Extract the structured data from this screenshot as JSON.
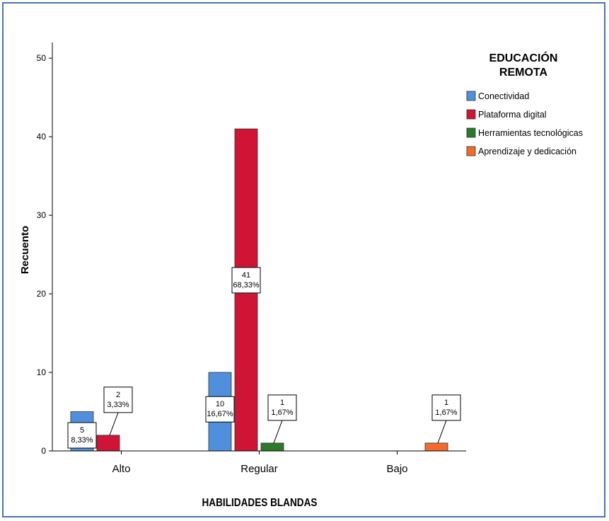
{
  "chart_data": {
    "type": "bar",
    "ylabel": "Recuento",
    "xlabel": "HABILIDADES BLANDAS",
    "ylim": [
      0,
      52
    ],
    "yticks": [
      0,
      10,
      20,
      30,
      40,
      50
    ],
    "categories": [
      "Alto",
      "Regular",
      "Bajo"
    ],
    "legend": {
      "title": [
        "EDUCACIÓN",
        "REMOTA"
      ],
      "position": "top-right"
    },
    "series": [
      {
        "name": "Conectividad",
        "color": "#4f8fdc",
        "values": [
          5,
          10,
          null
        ],
        "labels": [
          [
            "5",
            "8,33%"
          ],
          [
            "10",
            "16,67%"
          ],
          null
        ]
      },
      {
        "name": "Plataforma digital",
        "color": "#d01436",
        "values": [
          2,
          41,
          null
        ],
        "labels": [
          [
            "2",
            "3,33%"
          ],
          [
            "41",
            "68,33%"
          ],
          null
        ]
      },
      {
        "name": "Herramientas tecnológicas",
        "color": "#2a7a2a",
        "values": [
          null,
          1,
          null
        ],
        "labels": [
          null,
          [
            "1",
            "1,67%"
          ],
          null
        ]
      },
      {
        "name": "Aprendizaje y dedicación",
        "color": "#f26a2c",
        "values": [
          null,
          null,
          1
        ],
        "labels": [
          null,
          null,
          [
            "1",
            "1,67%"
          ]
        ]
      }
    ]
  }
}
